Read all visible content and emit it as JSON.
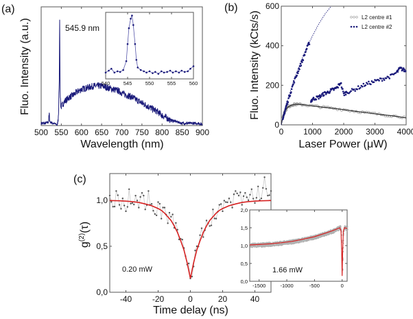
{
  "colors": {
    "navy": "#1a1a7a",
    "gray_data": "#9a9a9a",
    "fit_dark": "#333333",
    "fit_red": "#d62020",
    "frame": "#555555"
  },
  "chart_data": [
    {
      "id": "a",
      "panel_label": "(a)",
      "type": "line",
      "xlabel": "Wavelength (nm)",
      "ylabel": "Fluo. Intensity (a.u.)",
      "xlim": [
        500,
        900
      ],
      "ylim": [
        0,
        1.05
      ],
      "xticks": [
        500,
        550,
        600,
        650,
        700,
        750,
        800,
        850,
        900
      ],
      "annotation": "545.9 nm",
      "series": [
        {
          "color": "#1a1a7a",
          "x": [
            500,
            510,
            518,
            520,
            522,
            530,
            538,
            540,
            542,
            543,
            545,
            545.9,
            547,
            549,
            555,
            560,
            570,
            580,
            590,
            600,
            610,
            620,
            630,
            640,
            650,
            660,
            670,
            680,
            690,
            700,
            710,
            720,
            730,
            740,
            750,
            760,
            770,
            780,
            790,
            800,
            810,
            820,
            830,
            840,
            850,
            860,
            870,
            880,
            890,
            900
          ],
          "y": [
            0.02,
            0.02,
            0.03,
            0.1,
            0.03,
            0.02,
            0.01,
            0.0,
            0.06,
            0.12,
            0.4,
            1.0,
            0.3,
            0.16,
            0.2,
            0.22,
            0.25,
            0.27,
            0.3,
            0.32,
            0.33,
            0.34,
            0.35,
            0.35,
            0.35,
            0.34,
            0.33,
            0.32,
            0.31,
            0.29,
            0.27,
            0.26,
            0.24,
            0.22,
            0.2,
            0.18,
            0.16,
            0.14,
            0.12,
            0.09,
            0.07,
            0.05,
            0.04,
            0.03,
            0.02,
            0.02,
            0.02,
            0.02,
            0.02,
            0.01
          ]
        }
      ]
    },
    {
      "id": "a-inset",
      "type": "line",
      "xlim": [
        540,
        560
      ],
      "ylim": [
        0,
        1.05
      ],
      "xticks": [
        540,
        545,
        550,
        555,
        560
      ],
      "series": [
        {
          "color": "#1a1a7a",
          "x": [
            540,
            540.7,
            541.3,
            542,
            542.7,
            543.3,
            544,
            544.7,
            545,
            545.3,
            545.7,
            546,
            546.3,
            546.7,
            547,
            547.3,
            548,
            548.7,
            549.3,
            550,
            550.7,
            551.3,
            552,
            552.7,
            553.3,
            554,
            554.7,
            555.3,
            556,
            556.7,
            557.3,
            558,
            558.7,
            559.3,
            560
          ],
          "y": [
            0.1,
            0.13,
            0.16,
            0.1,
            0.12,
            0.11,
            0.14,
            0.28,
            0.55,
            0.8,
            0.95,
            1.0,
            0.85,
            0.55,
            0.3,
            0.18,
            0.14,
            0.12,
            0.1,
            0.12,
            0.09,
            0.11,
            0.08,
            0.12,
            0.1,
            0.11,
            0.13,
            0.1,
            0.12,
            0.1,
            0.13,
            0.11,
            0.12,
            0.16,
            0.2
          ]
        }
      ]
    },
    {
      "id": "b",
      "panel_label": "(b)",
      "type": "scatter",
      "xlabel": "Laser Power (μW)",
      "ylabel": "Fluo. Intensity (kCts/s)",
      "xlim": [
        0,
        4000
      ],
      "ylim": [
        0,
        600
      ],
      "xticks": [
        0,
        1000,
        2000,
        3000,
        4000
      ],
      "yticks": [
        0,
        200,
        400,
        600
      ],
      "legend_position": "top-right",
      "series": [
        {
          "name": "L2 centre #1",
          "color": "#9a9a9a",
          "marker": "open-circle",
          "x": [
            50,
            100,
            200,
            300,
            400,
            500,
            700,
            1000,
            1300,
            1600,
            2000,
            2400,
            2800,
            3200,
            3600,
            4000
          ],
          "y": [
            40,
            65,
            88,
            98,
            103,
            104,
            102,
            96,
            90,
            85,
            77,
            68,
            60,
            52,
            45,
            38
          ],
          "fit": {
            "color": "#333333",
            "style": "solid",
            "x": [
              0,
              50,
              100,
              200,
              300,
              400,
              500,
              700,
              1000,
              1300,
              1600,
              2000,
              2400,
              2800,
              3200,
              3600,
              4000
            ],
            "y": [
              0,
              40,
              65,
              88,
              98,
              103,
              104,
              102,
              96,
              90,
              85,
              77,
              68,
              60,
              52,
              45,
              35
            ]
          }
        },
        {
          "name": "L2 centre #2",
          "color": "#1a1a7a",
          "marker": "filled-circle",
          "x": [
            50,
            100,
            150,
            200,
            300,
            400,
            500,
            600,
            700,
            800,
            900,
            950,
            1000,
            1100,
            1200,
            1300,
            1400,
            1500,
            1600,
            1700,
            1800,
            1900,
            2000,
            2100,
            2300,
            2500,
            2700,
            2900,
            3100,
            3300,
            3500,
            3700,
            3800,
            3900,
            4000
          ],
          "y": [
            20,
            60,
            90,
            115,
            165,
            215,
            255,
            295,
            335,
            380,
            415,
            120,
            130,
            135,
            140,
            150,
            160,
            165,
            175,
            180,
            190,
            215,
            155,
            165,
            175,
            190,
            205,
            215,
            225,
            235,
            245,
            265,
            285,
            280,
            270
          ],
          "fit": {
            "color": "#1a1a7a",
            "style": "dotted",
            "x": [
              0,
              100,
              200,
              400,
              600,
              800,
              1000,
              1200,
              1400,
              1600
            ],
            "y": [
              0,
              70,
              125,
              225,
              310,
              385,
              450,
              510,
              560,
              605
            ]
          }
        }
      ]
    },
    {
      "id": "c",
      "panel_label": "(c)",
      "type": "line",
      "xlabel": "Time delay (ns)",
      "ylabel": "g(2)(τ)",
      "ylabel_parts": {
        "base": "g",
        "sup": "(2)",
        "arg": "(τ)"
      },
      "xlim": [
        -50,
        50
      ],
      "ylim": [
        0,
        1.29
      ],
      "xticks": [
        -40,
        -20,
        0,
        20,
        40
      ],
      "yticks": [
        0,
        0.5,
        1.0
      ],
      "ytick_labels": [
        "0,0",
        "0,5",
        "1,0"
      ],
      "annotation": "0.20 mW",
      "series": [
        {
          "color": "#9a9a9a",
          "marker": "filled-circle",
          "x": [
            -50,
            -48,
            -46,
            -44,
            -42,
            -40,
            -38,
            -36,
            -34,
            -32,
            -30,
            -28,
            -26,
            -24,
            -22,
            -20,
            -18,
            -16,
            -14,
            -12,
            -10,
            -8,
            -6,
            -4,
            -2,
            0,
            2,
            4,
            6,
            8,
            10,
            12,
            14,
            16,
            18,
            20,
            22,
            24,
            26,
            28,
            30,
            32,
            34,
            36,
            38,
            40,
            42,
            44,
            46,
            48,
            50
          ],
          "y": [
            1.05,
            0.93,
            1.1,
            0.95,
            1.02,
            0.88,
            1.12,
            0.97,
            1.05,
            0.92,
            1.08,
            0.9,
            1.1,
            0.96,
            0.85,
            0.98,
            0.8,
            0.92,
            0.75,
            0.82,
            0.7,
            0.68,
            0.58,
            0.48,
            0.3,
            0.15,
            0.28,
            0.5,
            0.62,
            0.6,
            0.78,
            0.72,
            0.9,
            0.8,
            0.95,
            0.88,
            0.98,
            1.02,
            0.92,
            1.1,
            1.05,
            0.95,
            1.08,
            1.0,
            1.12,
            0.97,
            1.15,
            1.02,
            1.25,
            1.05,
            1.1
          ]
        },
        {
          "color": "#d62020",
          "style": "fit",
          "x": [
            -50,
            -44,
            -40,
            -36,
            -32,
            -28,
            -24,
            -20,
            -18,
            -16,
            -14,
            -12,
            -10,
            -8,
            -6,
            -4,
            -2,
            0,
            2,
            4,
            6,
            8,
            10,
            12,
            14,
            16,
            18,
            20,
            24,
            28,
            32,
            36,
            40,
            44,
            50
          ],
          "y": [
            0.997,
            0.994,
            0.99,
            0.985,
            0.976,
            0.96,
            0.94,
            0.91,
            0.89,
            0.86,
            0.82,
            0.78,
            0.72,
            0.65,
            0.56,
            0.46,
            0.32,
            0.15,
            0.32,
            0.46,
            0.56,
            0.65,
            0.72,
            0.78,
            0.82,
            0.86,
            0.89,
            0.91,
            0.94,
            0.96,
            0.976,
            0.985,
            0.99,
            0.994,
            0.997
          ]
        }
      ]
    },
    {
      "id": "c-inset",
      "type": "line",
      "xlim": [
        -1670,
        90
      ],
      "ylim": [
        0,
        2
      ],
      "xticks": [
        -1500,
        -1000,
        -500,
        0
      ],
      "yticks": [
        0,
        0.5,
        1.0,
        1.5,
        2.0
      ],
      "ytick_labels": [
        "0,0",
        "0,5",
        "1,0",
        "1,5",
        "2,0"
      ],
      "annotation": "1.66 mW",
      "series": [
        {
          "color": "#9a9a9a",
          "style": "band",
          "x": [
            -1670,
            -1500,
            -1300,
            -1100,
            -900,
            -700,
            -500,
            -300,
            -150,
            -40,
            -20,
            -8,
            0,
            8,
            20,
            40,
            90
          ],
          "y": [
            1.02,
            1.03,
            1.05,
            1.08,
            1.12,
            1.18,
            1.25,
            1.35,
            1.43,
            1.52,
            1.42,
            0.8,
            0.15,
            0.8,
            1.42,
            1.52,
            1.48
          ]
        },
        {
          "color": "#d62020",
          "style": "fit",
          "x": [
            -1670,
            -1500,
            -1300,
            -1100,
            -900,
            -700,
            -500,
            -300,
            -150,
            -40,
            -20,
            -8,
            0,
            8,
            20,
            40,
            90
          ],
          "y": [
            1.02,
            1.03,
            1.05,
            1.08,
            1.12,
            1.18,
            1.25,
            1.35,
            1.43,
            1.5,
            1.4,
            0.8,
            0.15,
            0.8,
            1.4,
            1.5,
            1.48
          ]
        }
      ]
    }
  ]
}
